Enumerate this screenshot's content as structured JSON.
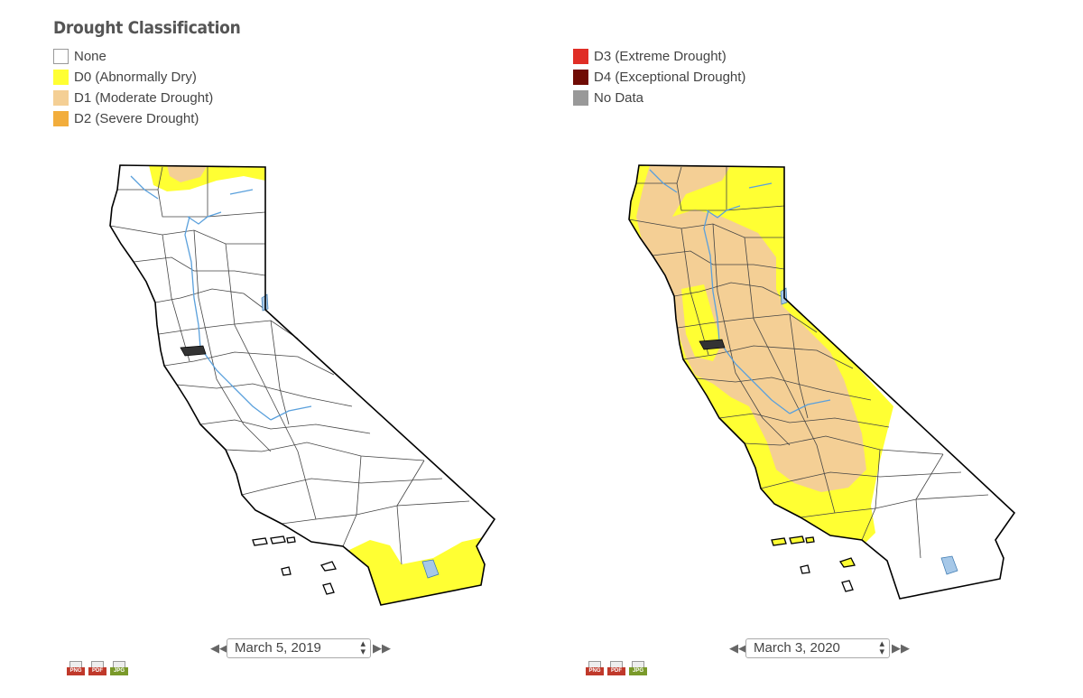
{
  "legend": {
    "title": "Drought Classification",
    "items": [
      {
        "label": "None",
        "color": "#ffffff"
      },
      {
        "label": "D0 (Abnormally Dry)",
        "color": "#ffff33"
      },
      {
        "label": "D1 (Moderate Drought)",
        "color": "#f4cf95"
      },
      {
        "label": "D2 (Severe Drought)",
        "color": "#f2ad3c"
      },
      {
        "label": "D3 (Extreme Drought)",
        "color": "#e02e26"
      },
      {
        "label": "D4 (Exceptional Drought)",
        "color": "#700c05"
      },
      {
        "label": "No Data",
        "color": "#999999"
      }
    ]
  },
  "maps": [
    {
      "date": "March 5, 2019",
      "region": "California"
    },
    {
      "date": "March 3, 2020",
      "region": "California"
    }
  ],
  "download": {
    "png": "PNG",
    "pdf": "PDF",
    "jpg": "JPG"
  },
  "colors": {
    "river": "#5aa0dc",
    "lake": "#a6c8e8",
    "border": "#000000",
    "county": "#444444"
  }
}
